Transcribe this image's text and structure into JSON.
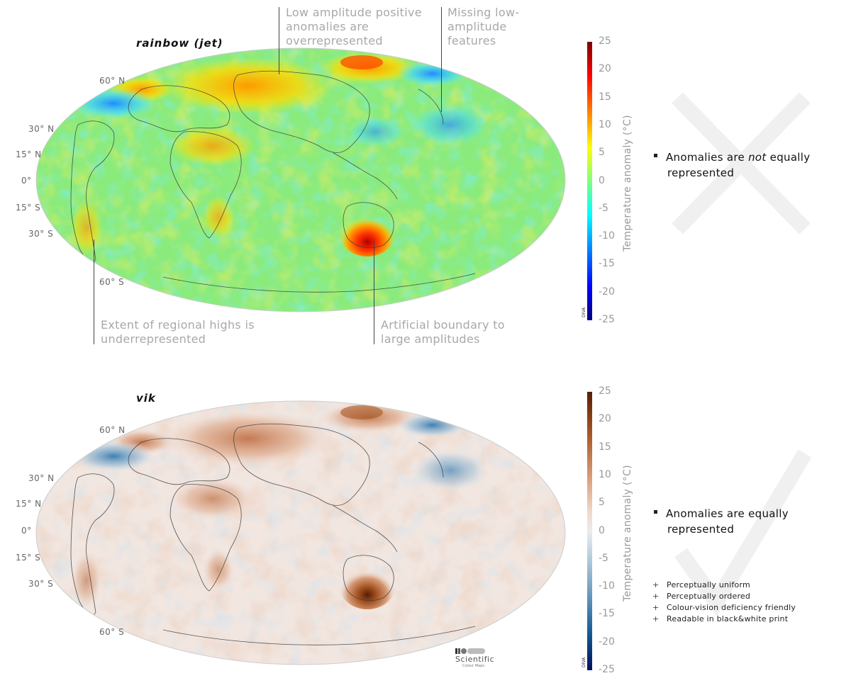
{
  "top": {
    "title": "rainbow (jet)",
    "latitudes": [
      "60° N",
      "30° N",
      "15° N",
      "0°",
      "15° S",
      "30° S",
      "60° S"
    ],
    "annotations": {
      "overrep": [
        "Low amplitude positive",
        "anomalies are",
        "overrepresented"
      ],
      "missing": [
        "Missing low-",
        "amplitude",
        "features"
      ],
      "extent": [
        "Extent of regional highs is",
        "underrepresented"
      ],
      "boundary": [
        "Artificial boundary to",
        "large amplitudes"
      ]
    },
    "colorbar": {
      "ticks": [
        "25",
        "20",
        "15",
        "10",
        "5",
        "0",
        "-5",
        "-10",
        "-15",
        "-20",
        "-25"
      ],
      "label": "Temperature anomaly (°C)",
      "credit": "DIVA",
      "colors": [
        "#7f0000",
        "#ff0000",
        "#ff7f00",
        "#ffff00",
        "#7fff7f",
        "#00ffff",
        "#007fff",
        "#0000ff",
        "#00007f"
      ]
    },
    "verdict_icon": "cross-icon",
    "statement": [
      "Anomalies are ",
      "not",
      " equally",
      "represented"
    ]
  },
  "bottom": {
    "title": "vik",
    "latitudes": [
      "60° N",
      "30° N",
      "15° N",
      "0°",
      "15° S",
      "30° S",
      "60° S"
    ],
    "colorbar": {
      "ticks": [
        "25",
        "20",
        "15",
        "10",
        "5",
        "0",
        "-5",
        "-10",
        "-15",
        "-20",
        "-25"
      ],
      "label": "Temperature anomaly (°C)",
      "credit": "DIVA",
      "colors": [
        "#591d05",
        "#a75624",
        "#d69a76",
        "#f0d8c9",
        "#ececec",
        "#c4d6e2",
        "#6e9dbf",
        "#175d95",
        "#001261"
      ]
    },
    "verdict_icon": "checkmark-icon",
    "statement": [
      "Anomalies are equally",
      "represented"
    ],
    "benefits": [
      "Perceptually uniform",
      "Perceptually ordered",
      "Colour-vision deficiency friendly",
      "Readable in black&white print"
    ],
    "logo": {
      "name": "Scientific",
      "sub": "Colour Maps"
    }
  }
}
